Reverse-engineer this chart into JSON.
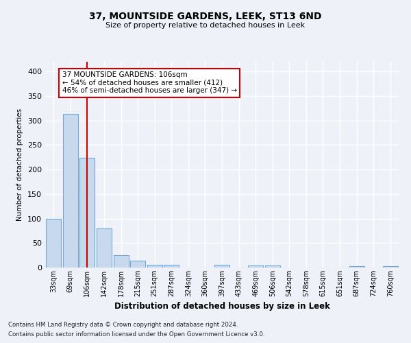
{
  "title": "37, MOUNTSIDE GARDENS, LEEK, ST13 6ND",
  "subtitle": "Size of property relative to detached houses in Leek",
  "xlabel": "Distribution of detached houses by size in Leek",
  "ylabel": "Number of detached properties",
  "bar_labels": [
    "33sqm",
    "69sqm",
    "106sqm",
    "142sqm",
    "178sqm",
    "215sqm",
    "251sqm",
    "287sqm",
    "324sqm",
    "360sqm",
    "397sqm",
    "433sqm",
    "469sqm",
    "506sqm",
    "542sqm",
    "578sqm",
    "615sqm",
    "651sqm",
    "687sqm",
    "724sqm",
    "760sqm"
  ],
  "bar_values": [
    99,
    313,
    224,
    80,
    25,
    14,
    5,
    5,
    0,
    0,
    6,
    0,
    4,
    4,
    0,
    0,
    0,
    0,
    3,
    0,
    3
  ],
  "bar_color": "#c9d9ed",
  "bar_edge_color": "#6fa8d6",
  "vline_x": 2,
  "vline_color": "#cc0000",
  "annotation_line1": "37 MOUNTSIDE GARDENS: 106sqm",
  "annotation_line2": "← 54% of detached houses are smaller (412)",
  "annotation_line3": "46% of semi-detached houses are larger (347) →",
  "annotation_box_color": "#ffffff",
  "annotation_box_edge": "#cc0000",
  "ylim": [
    0,
    420
  ],
  "yticks": [
    0,
    50,
    100,
    150,
    200,
    250,
    300,
    350,
    400
  ],
  "bg_color": "#eef2f8",
  "grid_color": "#ffffff",
  "footer_line1": "Contains HM Land Registry data © Crown copyright and database right 2024.",
  "footer_line2": "Contains public sector information licensed under the Open Government Licence v3.0."
}
